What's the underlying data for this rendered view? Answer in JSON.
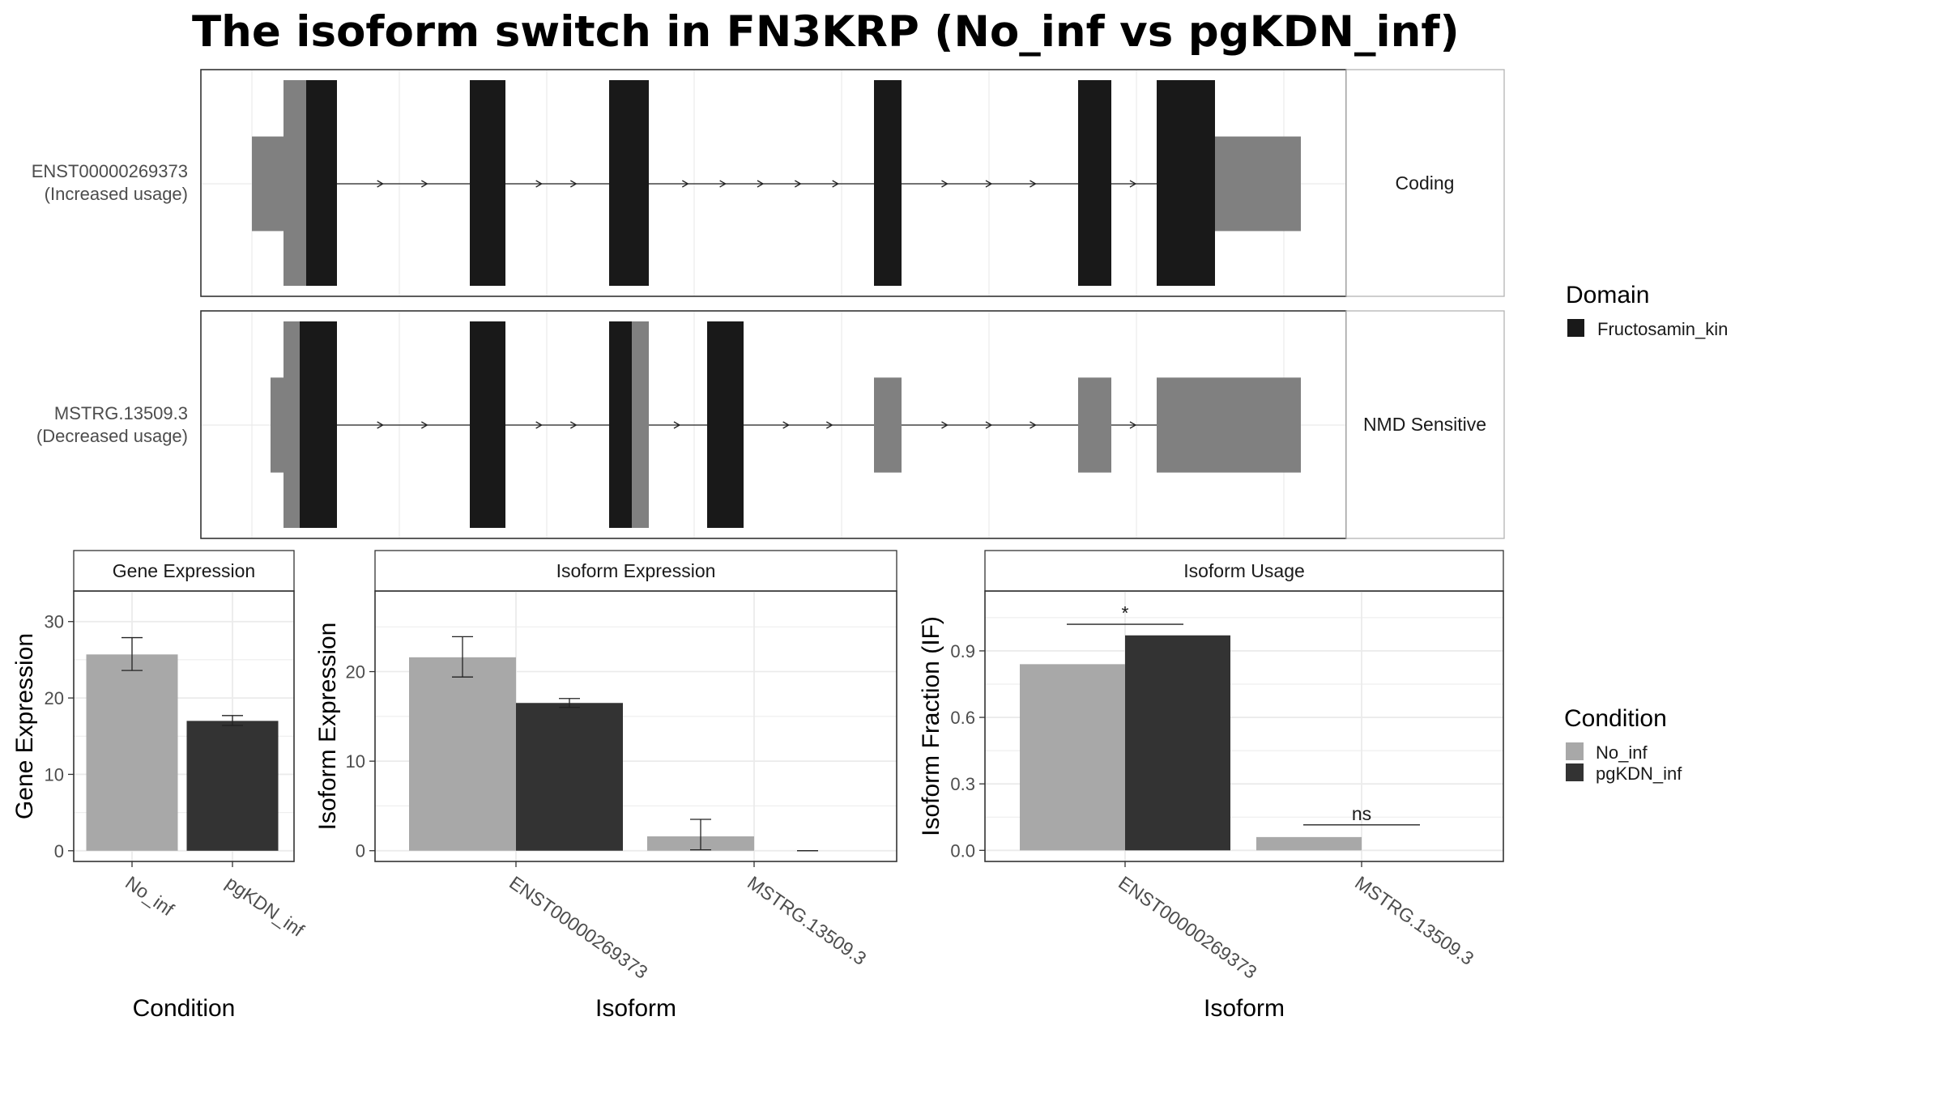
{
  "title": "The isoform switch in FN3KRP (No_inf vs pgKDN_inf)",
  "colors": {
    "no_inf": "#A8A8A8",
    "pgkdn_inf": "#333333",
    "domain": "#191919",
    "noncoding": "#808080",
    "grid": "#EBEBEB"
  },
  "isoform_plot": {
    "rows": [
      {
        "id_label": "ENST00000269373",
        "usage_label": "(Increased usage)",
        "strip": "Coding"
      },
      {
        "id_label": "MSTRG.13509.3",
        "usage_label": "(Decreased usage)",
        "strip": "NMD Sensitive"
      }
    ]
  },
  "domain_legend": {
    "title": "Domain",
    "items": [
      {
        "label": "Fructosamin_kin",
        "color": "#191919"
      }
    ]
  },
  "condition_legend": {
    "title": "Condition",
    "items": [
      {
        "label": "No_inf",
        "color": "#A8A8A8"
      },
      {
        "label": "pgKDN_inf",
        "color": "#333333"
      }
    ]
  },
  "chart_data": [
    {
      "type": "bar",
      "title": "Gene Expression",
      "xlabel": "Condition",
      "ylabel": "Gene Expression",
      "categories": [
        "No_inf",
        "pgKDN_inf"
      ],
      "series": [
        {
          "name": "No_inf",
          "values": [
            25.7,
            null
          ],
          "error_low": [
            23.6,
            null
          ],
          "error_high": [
            27.9,
            null
          ]
        },
        {
          "name": "pgKDN_inf",
          "values": [
            null,
            17.0
          ],
          "error_low": [
            null,
            16.4
          ],
          "error_high": [
            null,
            17.7
          ]
        }
      ],
      "yticks": [
        0,
        10,
        20,
        30
      ],
      "ylim": [
        -1.4,
        34
      ]
    },
    {
      "type": "bar",
      "title": "Isoform Expression",
      "xlabel": "Isoform",
      "ylabel": "Isoform Expression",
      "categories": [
        "ENST00000269373",
        "MSTRG.13509.3"
      ],
      "series": [
        {
          "name": "No_inf",
          "values": [
            21.6,
            1.6
          ],
          "error_low": [
            19.4,
            0.1
          ],
          "error_high": [
            23.9,
            3.5
          ]
        },
        {
          "name": "pgKDN_inf",
          "values": [
            16.5,
            0.0
          ],
          "error_low": [
            16.0,
            0.0
          ],
          "error_high": [
            17.0,
            0.0
          ]
        }
      ],
      "yticks": [
        0,
        10,
        20
      ],
      "ylim": [
        -1.2,
        29
      ]
    },
    {
      "type": "bar",
      "title": "Isoform Usage",
      "xlabel": "Isoform",
      "ylabel": "Isoform Fraction (IF)",
      "categories": [
        "ENST00000269373",
        "MSTRG.13509.3"
      ],
      "series": [
        {
          "name": "No_inf",
          "values": [
            0.84,
            0.06
          ]
        },
        {
          "name": "pgKDN_inf",
          "values": [
            0.97,
            0.0
          ]
        }
      ],
      "significance": [
        {
          "category": "ENST00000269373",
          "label": "*",
          "y": 1.02
        },
        {
          "category": "MSTRG.13509.3",
          "label": "ns",
          "y": 0.115
        }
      ],
      "yticks": [
        0.0,
        0.3,
        0.6,
        0.9
      ],
      "ytick_labels": [
        "0.0",
        "0.3",
        "0.6",
        "0.9"
      ],
      "ylim": [
        -0.05,
        1.17
      ]
    }
  ]
}
